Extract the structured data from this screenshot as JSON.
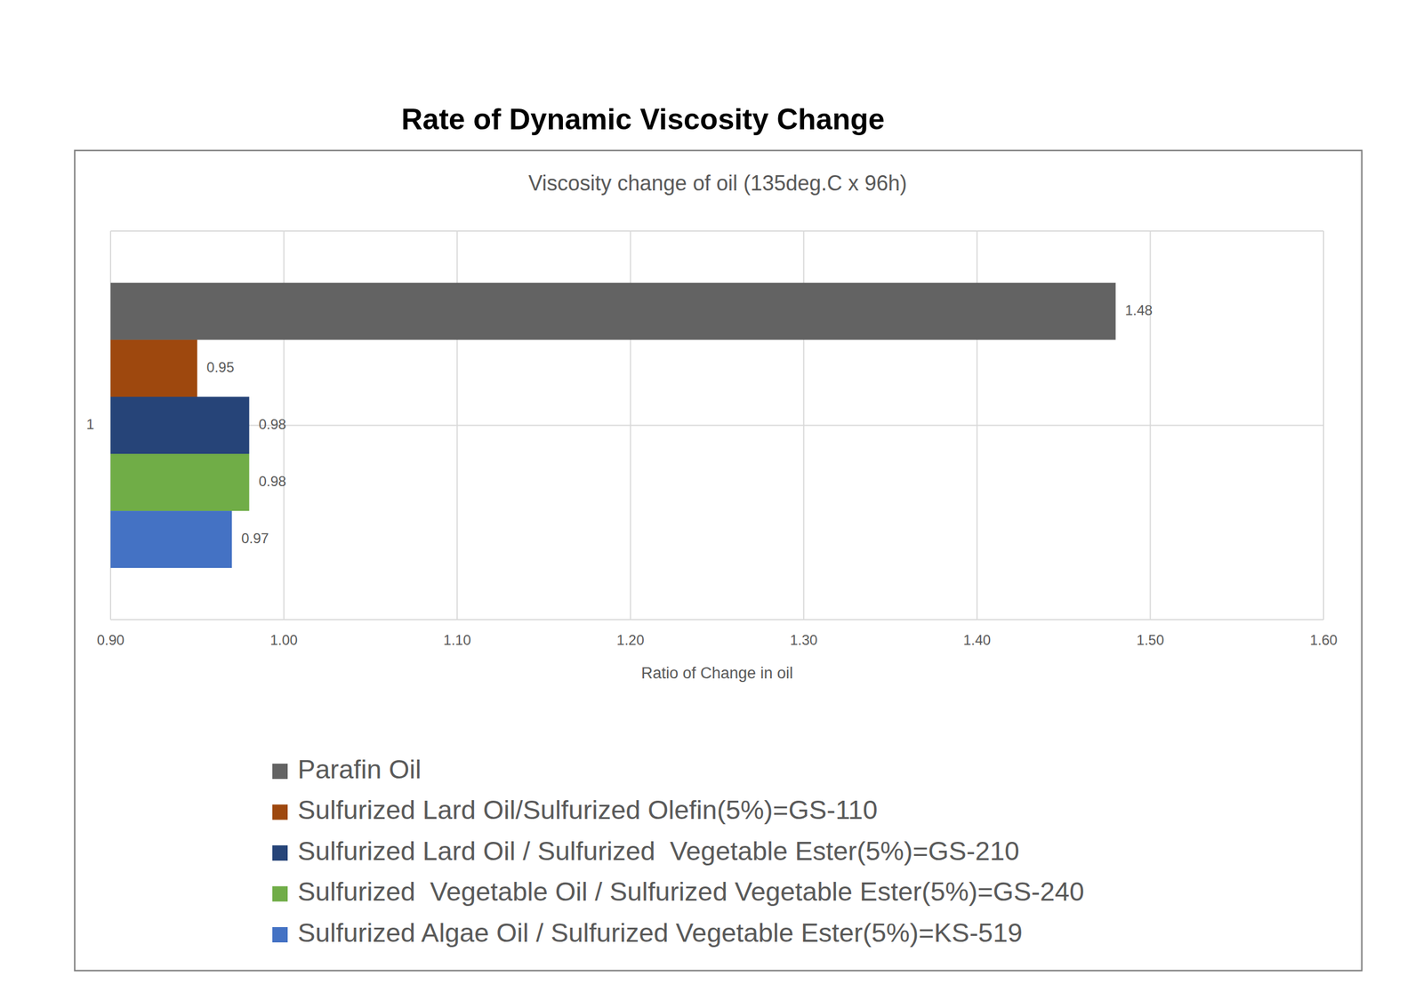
{
  "chart_data": {
    "type": "bar",
    "title": "Rate of Dynamic Viscosity Change",
    "subtitle": "Viscosity change of oil (135deg.C x 96h)",
    "x_label": "Ratio of Change in oil",
    "orientation": "horizontal",
    "categories": [
      "1"
    ],
    "series": [
      {
        "name": "Parafin Oil",
        "color": "#636363",
        "values": [
          1.48
        ]
      },
      {
        "name": "Sulfurized Lard Oil/Sulfurized Olefin(5%)=GS-110",
        "color": "#9e480e",
        "values": [
          0.95
        ]
      },
      {
        "name": "Sulfurized Lard Oil / Sulfurized  Vegetable Ester(5%)=GS-210",
        "color": "#264478",
        "values": [
          0.98
        ]
      },
      {
        "name": "Sulfurized  Vegetable Oil / Sulfurized Vegetable Ester(5%)=GS-240",
        "color": "#70ad47",
        "values": [
          0.98
        ]
      },
      {
        "name": "Sulfurized Algae Oil / Sulfurized Vegetable Ester(5%)=KS-519",
        "color": "#4472c4",
        "values": [
          0.97
        ]
      }
    ],
    "xlim": [
      0.9,
      1.6
    ],
    "xticks": [
      {
        "value": 0.9,
        "label": "0.90"
      },
      {
        "value": 1.0,
        "label": "1.00"
      },
      {
        "value": 1.1,
        "label": "1.10"
      },
      {
        "value": 1.2,
        "label": "1.20"
      },
      {
        "value": 1.3,
        "label": "1.30"
      },
      {
        "value": 1.4,
        "label": "1.40"
      },
      {
        "value": 1.5,
        "label": "1.50"
      },
      {
        "value": 1.6,
        "label": "1.60"
      }
    ],
    "grid": true,
    "data_labels": true,
    "legend": "bottom"
  }
}
